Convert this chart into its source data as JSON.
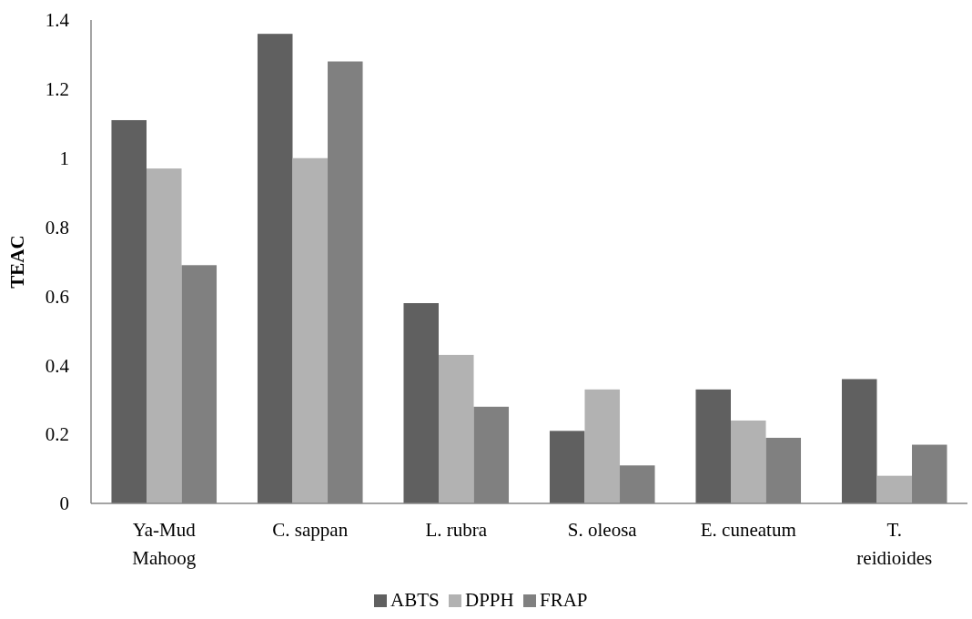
{
  "chart_data": {
    "type": "bar",
    "ylabel": "TEAC",
    "categories": [
      "Ya-Mud Mahoog",
      "C. sappan",
      "L. rubra",
      "S. oleosa",
      "E. cuneatum",
      "T. reidioides"
    ],
    "series": [
      {
        "name": "ABTS",
        "color": "#606060",
        "values": [
          1.11,
          1.36,
          0.58,
          0.21,
          0.33,
          0.36
        ]
      },
      {
        "name": "DPPH",
        "color": "#b2b2b2",
        "values": [
          0.97,
          1.0,
          0.43,
          0.33,
          0.24,
          0.08
        ]
      },
      {
        "name": "FRAP",
        "color": "#808080",
        "values": [
          0.69,
          1.28,
          0.28,
          0.11,
          0.19,
          0.17
        ]
      }
    ],
    "ylim": [
      0,
      1.4
    ],
    "yticks": [
      0,
      0.2,
      0.4,
      0.6,
      0.8,
      1,
      1.2,
      1.4
    ],
    "grid": false,
    "legend": "bottom"
  }
}
